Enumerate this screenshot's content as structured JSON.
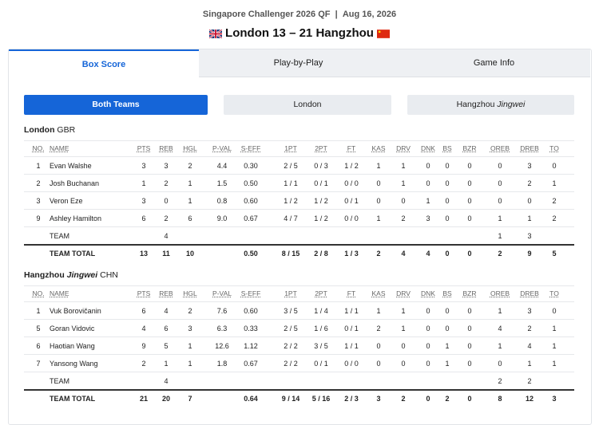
{
  "header": {
    "event": "Singapore Challenger 2026 QF",
    "separator": "|",
    "date": "Aug 16, 2026",
    "home": "London",
    "home_score": "13",
    "dash": "–",
    "away_score": "21",
    "away": "Hangzhou"
  },
  "tabs": [
    "Box Score",
    "Play-by-Play",
    "Game Info"
  ],
  "filters": [
    {
      "name": "Both Teams"
    },
    {
      "name": "London"
    },
    {
      "name": "Hangzhou",
      "italic": "Jingwei"
    }
  ],
  "columns": [
    "NO.",
    "NAME",
    "PTS",
    "REB",
    "HGL",
    "P-VAL",
    "S-EFF",
    "1PT",
    "2PT",
    "FT",
    "KAS",
    "DRV",
    "DNK",
    "BS",
    "BZR",
    "OREB",
    "DREB",
    "TO"
  ],
  "teams": [
    {
      "name": "London",
      "country": "GBR",
      "rows": [
        [
          "1",
          "Evan Walshe",
          "3",
          "3",
          "2",
          "4.4",
          "0.30",
          "2 / 5",
          "0 / 3",
          "1 / 2",
          "1",
          "1",
          "0",
          "0",
          "0",
          "0",
          "3",
          "0"
        ],
        [
          "2",
          "Josh Buchanan",
          "1",
          "2",
          "1",
          "1.5",
          "0.50",
          "1 / 1",
          "0 / 1",
          "0 / 0",
          "0",
          "1",
          "0",
          "0",
          "0",
          "0",
          "2",
          "1"
        ],
        [
          "3",
          "Veron Eze",
          "3",
          "0",
          "1",
          "0.8",
          "0.60",
          "1 / 2",
          "1 / 2",
          "0 / 1",
          "0",
          "0",
          "1",
          "0",
          "0",
          "0",
          "0",
          "2"
        ],
        [
          "9",
          "Ashley Hamilton",
          "6",
          "2",
          "6",
          "9.0",
          "0.67",
          "4 / 7",
          "1 / 2",
          "0 / 0",
          "1",
          "2",
          "3",
          "0",
          "0",
          "1",
          "1",
          "2"
        ],
        [
          null,
          "TEAM",
          null,
          "4",
          null,
          null,
          null,
          null,
          null,
          null,
          null,
          null,
          null,
          null,
          null,
          "1",
          "3",
          null
        ]
      ],
      "total": [
        null,
        "TEAM TOTAL",
        "13",
        "11",
        "10",
        null,
        "0.50",
        "8 / 15",
        "2 / 8",
        "1 / 3",
        "2",
        "4",
        "4",
        "0",
        "0",
        "2",
        "9",
        "5"
      ]
    },
    {
      "name": "Hangzhou",
      "italic": "Jingwei",
      "country": "CHN",
      "rows": [
        [
          "1",
          "Vuk Borovičanin",
          "6",
          "4",
          "2",
          "7.6",
          "0.60",
          "3 / 5",
          "1 / 4",
          "1 / 1",
          "1",
          "1",
          "0",
          "0",
          "0",
          "1",
          "3",
          "0"
        ],
        [
          "5",
          "Goran Vidovic",
          "4",
          "6",
          "3",
          "6.3",
          "0.33",
          "2 / 5",
          "1 / 6",
          "0 / 1",
          "2",
          "1",
          "0",
          "0",
          "0",
          "4",
          "2",
          "1"
        ],
        [
          "6",
          "Haotian Wang",
          "9",
          "5",
          "1",
          "12.6",
          "1.12",
          "2 / 2",
          "3 / 5",
          "1 / 1",
          "0",
          "0",
          "0",
          "1",
          "0",
          "1",
          "4",
          "1"
        ],
        [
          "7",
          "Yansong Wang",
          "2",
          "1",
          "1",
          "1.8",
          "0.67",
          "2 / 2",
          "0 / 1",
          "0 / 0",
          "0",
          "0",
          "0",
          "1",
          "0",
          "0",
          "1",
          "1"
        ],
        [
          null,
          "TEAM",
          null,
          "4",
          null,
          null,
          null,
          null,
          null,
          null,
          null,
          null,
          null,
          null,
          null,
          "2",
          "2",
          null
        ]
      ],
      "total": [
        null,
        "TEAM TOTAL",
        "21",
        "20",
        "7",
        null,
        "0.64",
        "9 / 14",
        "5 / 16",
        "2 / 3",
        "3",
        "2",
        "0",
        "2",
        "0",
        "8",
        "12",
        "3"
      ]
    }
  ]
}
